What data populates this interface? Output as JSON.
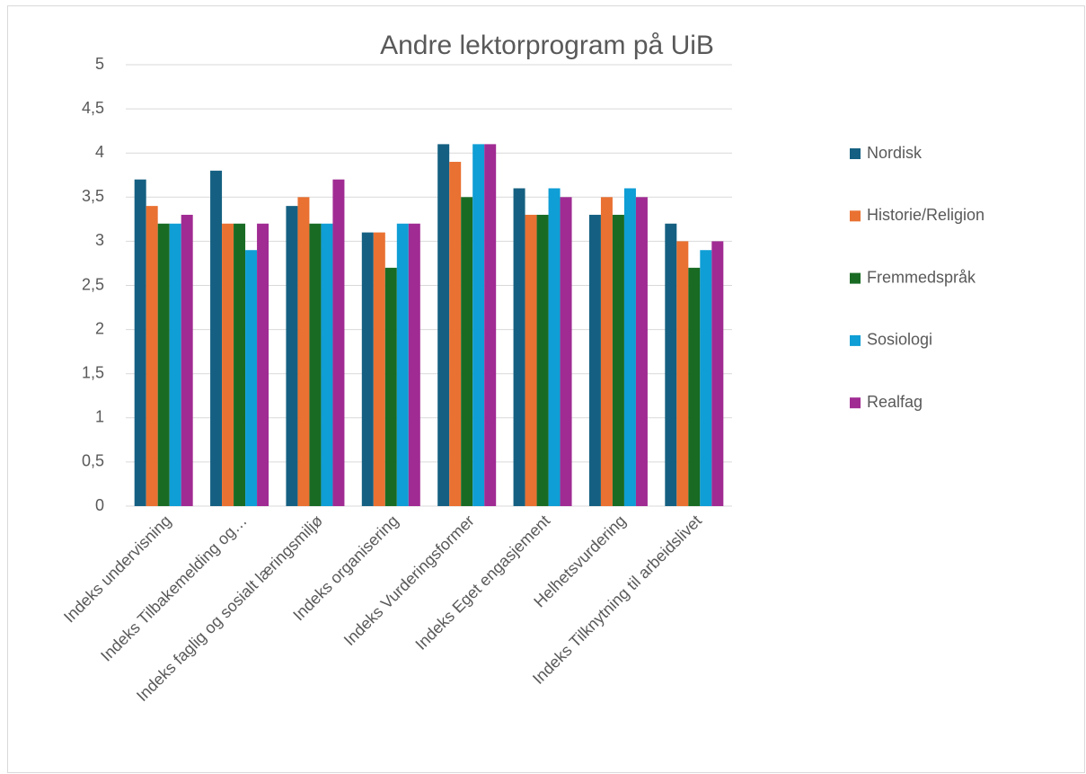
{
  "chart_data": {
    "type": "bar",
    "title": "Andre lektorprogram på UiB",
    "categories": [
      "Indeks undervisning",
      "Indeks Tilbakemelding og…",
      "Indeks faglig og sosialt læringsmiljø",
      "Indeks organisering",
      "Indeks Vurderingsformer",
      "Indeks Eget engasjement",
      "Helhetsvurdering",
      "Indeks Tilknytning til arbeidslivet"
    ],
    "series": [
      {
        "name": "Nordisk",
        "color": "#156082",
        "values": [
          3.7,
          3.8,
          3.4,
          3.1,
          4.1,
          3.6,
          3.3,
          3.2
        ]
      },
      {
        "name": "Historie/Religion",
        "color": "#e97132",
        "values": [
          3.4,
          3.2,
          3.5,
          3.1,
          3.9,
          3.3,
          3.5,
          3.0
        ]
      },
      {
        "name": "Fremmedspråk",
        "color": "#196b24",
        "values": [
          3.2,
          3.2,
          3.2,
          2.7,
          3.5,
          3.3,
          3.3,
          2.7
        ]
      },
      {
        "name": "Sosiologi",
        "color": "#0f9ed5",
        "values": [
          3.2,
          2.9,
          3.2,
          3.2,
          4.1,
          3.6,
          3.6,
          2.9
        ]
      },
      {
        "name": "Realfag",
        "color": "#a02b93",
        "values": [
          3.3,
          3.2,
          3.7,
          3.2,
          4.1,
          3.5,
          3.5,
          3.0
        ]
      }
    ],
    "ylim": [
      0,
      5
    ],
    "yticks": [
      0,
      {
        "value": 0.5,
        "label": "0,5"
      },
      1,
      {
        "value": 1.5,
        "label": "1,5"
      },
      2,
      {
        "value": 2.5,
        "label": "2,5"
      },
      3,
      {
        "value": 3.5,
        "label": "3,5"
      },
      4,
      {
        "value": 4.5,
        "label": "4,5"
      },
      5
    ],
    "grid": true,
    "legend": "right"
  }
}
